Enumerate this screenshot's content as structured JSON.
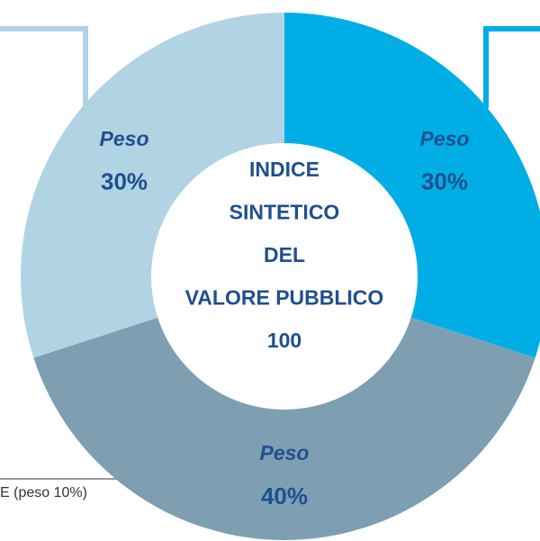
{
  "chart_data": {
    "type": "pie",
    "donut": true,
    "categories": [
      "Peso",
      "Peso",
      "Peso"
    ],
    "values": [
      30,
      40,
      30
    ],
    "value_labels": [
      "30%",
      "40%",
      "30%"
    ],
    "colors": [
      "#00aee6",
      "#7e9fb2",
      "#b1d4e5"
    ],
    "center_text": [
      "INDICE",
      "SINTETICO",
      "DEL",
      "VALORE PUBBLICO",
      "100"
    ],
    "annotation": "E (peso 10%)"
  }
}
